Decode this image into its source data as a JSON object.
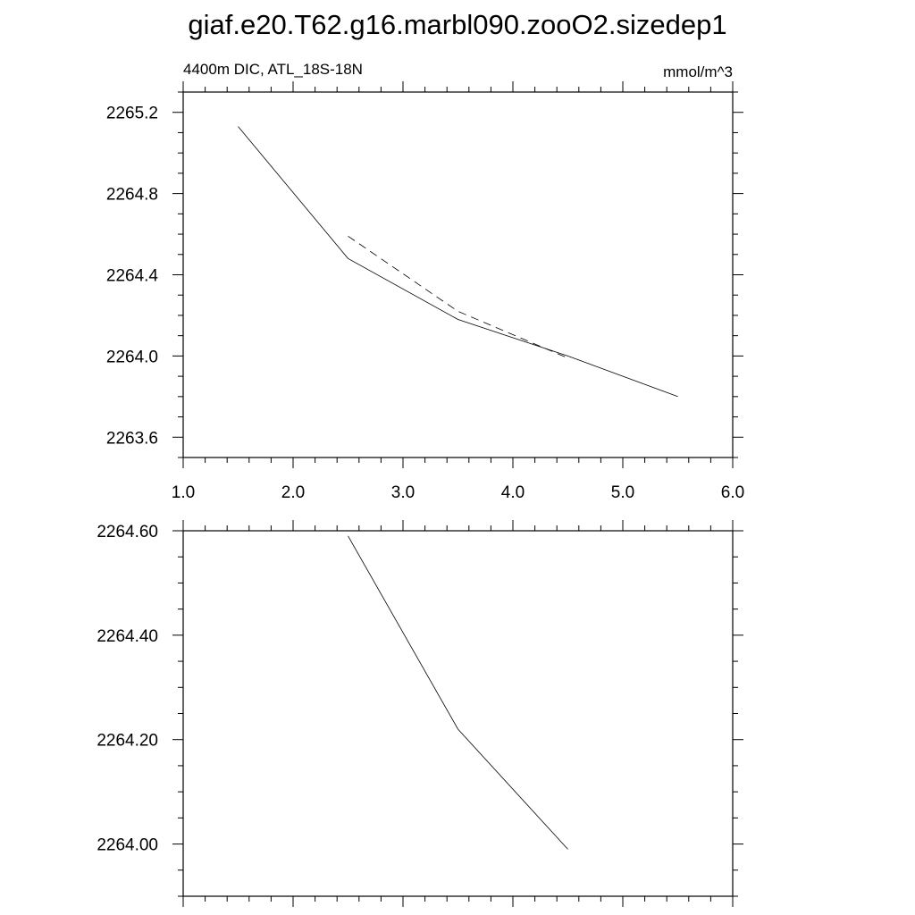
{
  "title": "giaf.e20.T62.g16.marbl090.zooO2.sizedep1",
  "chart_data": [
    {
      "type": "line",
      "left_string": "4400m DIC, ATL_18S-18N",
      "right_string": "mmol/m^3",
      "xlim": [
        1.0,
        6.0
      ],
      "ylim": [
        2263.5,
        2265.3
      ],
      "x_tick_labels": [
        "1.0",
        "2.0",
        "3.0",
        "4.0",
        "5.0",
        "6.0"
      ],
      "x_ticks": [
        1.0,
        2.0,
        3.0,
        4.0,
        5.0,
        6.0
      ],
      "y_tick_labels": [
        "2263.6",
        "2264.0",
        "2264.4",
        "2264.8",
        "2265.2"
      ],
      "y_ticks": [
        2263.6,
        2264.0,
        2264.4,
        2264.8,
        2265.2
      ],
      "series": [
        {
          "style": "solid",
          "x": [
            1.5,
            2.5,
            3.5,
            4.5,
            5.5
          ],
          "y": [
            2265.13,
            2264.48,
            2264.18,
            2264.0,
            2263.8
          ]
        },
        {
          "style": "dashed",
          "x": [
            2.5,
            3.5,
            4.5
          ],
          "y": [
            2264.59,
            2264.22,
            2263.99
          ]
        }
      ]
    },
    {
      "type": "line",
      "xlim": [
        1.0,
        6.0
      ],
      "ylim": [
        2263.9,
        2264.6
      ],
      "x_ticks": [
        1.0,
        2.0,
        3.0,
        4.0,
        5.0,
        6.0
      ],
      "y_tick_labels": [
        "2264.00",
        "2264.20",
        "2264.40",
        "2264.60"
      ],
      "y_ticks": [
        2264.0,
        2264.2,
        2264.4,
        2264.6
      ],
      "series": [
        {
          "style": "solid",
          "x": [
            2.5,
            3.5,
            4.5
          ],
          "y": [
            2264.59,
            2264.22,
            2263.99
          ]
        }
      ]
    }
  ]
}
